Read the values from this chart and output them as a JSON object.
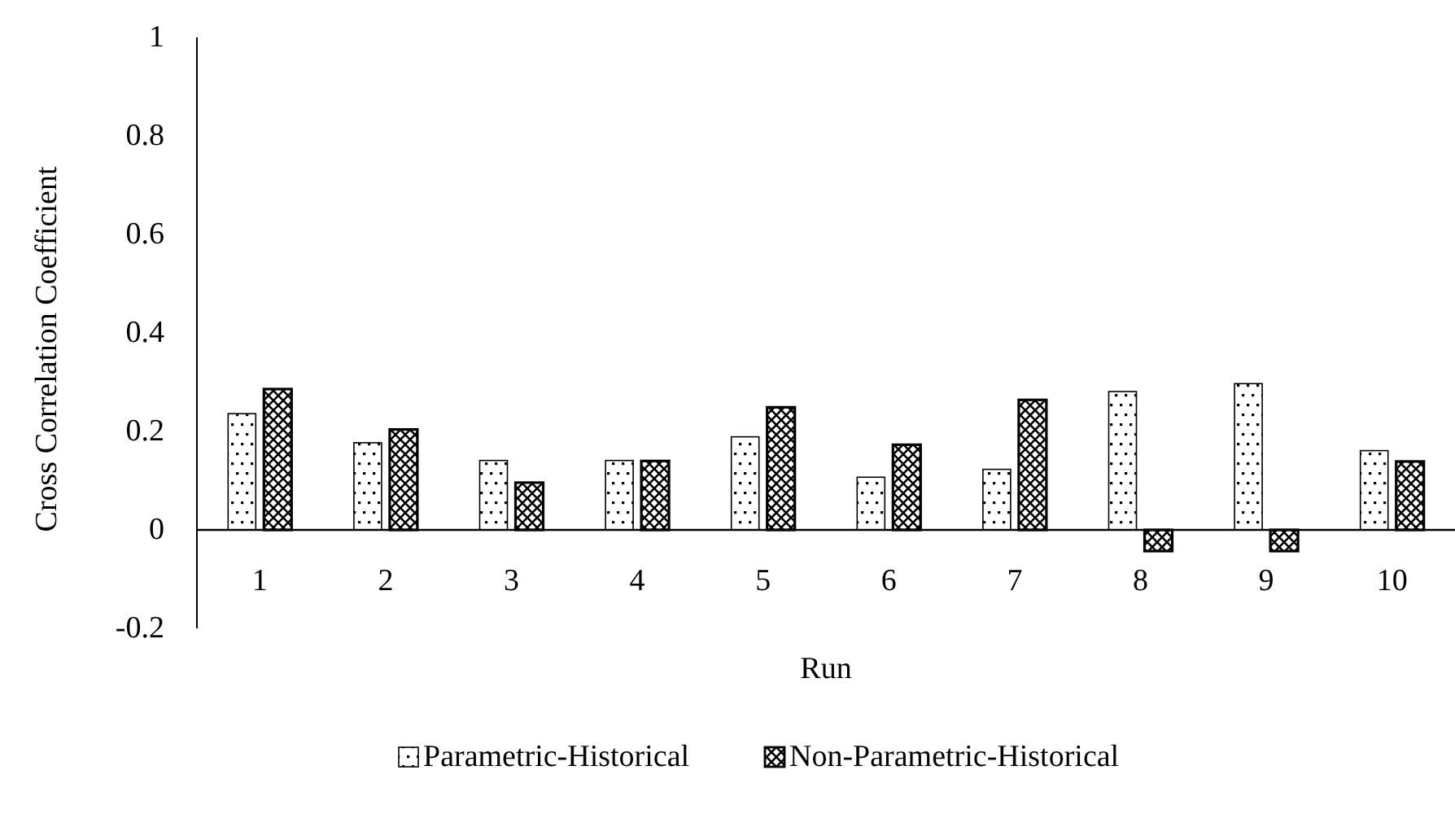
{
  "chart_data": {
    "type": "bar",
    "xlabel": "Run",
    "ylabel": "Cross Correlation Coefficient",
    "categories": [
      "1",
      "2",
      "3",
      "4",
      "5",
      "6",
      "7",
      "8",
      "9",
      "10"
    ],
    "series": [
      {
        "name": "Parametric-Historical",
        "color": "#000000",
        "values": [
          0.236,
          0.177,
          0.141,
          0.141,
          0.189,
          0.107,
          0.123,
          0.281,
          0.297,
          0.161
        ]
      },
      {
        "name": "Non-Parametric-Historical",
        "color": "#000000",
        "values": [
          0.286,
          0.204,
          0.096,
          0.14,
          0.249,
          0.173,
          0.264,
          -0.043,
          -0.043,
          0.139
        ]
      }
    ],
    "ylim": [
      -0.2,
      1
    ],
    "yticks": [
      -0.2,
      0,
      0.2,
      0.4,
      0.6,
      0.8,
      1
    ],
    "grid": false,
    "legend": "bottom"
  }
}
